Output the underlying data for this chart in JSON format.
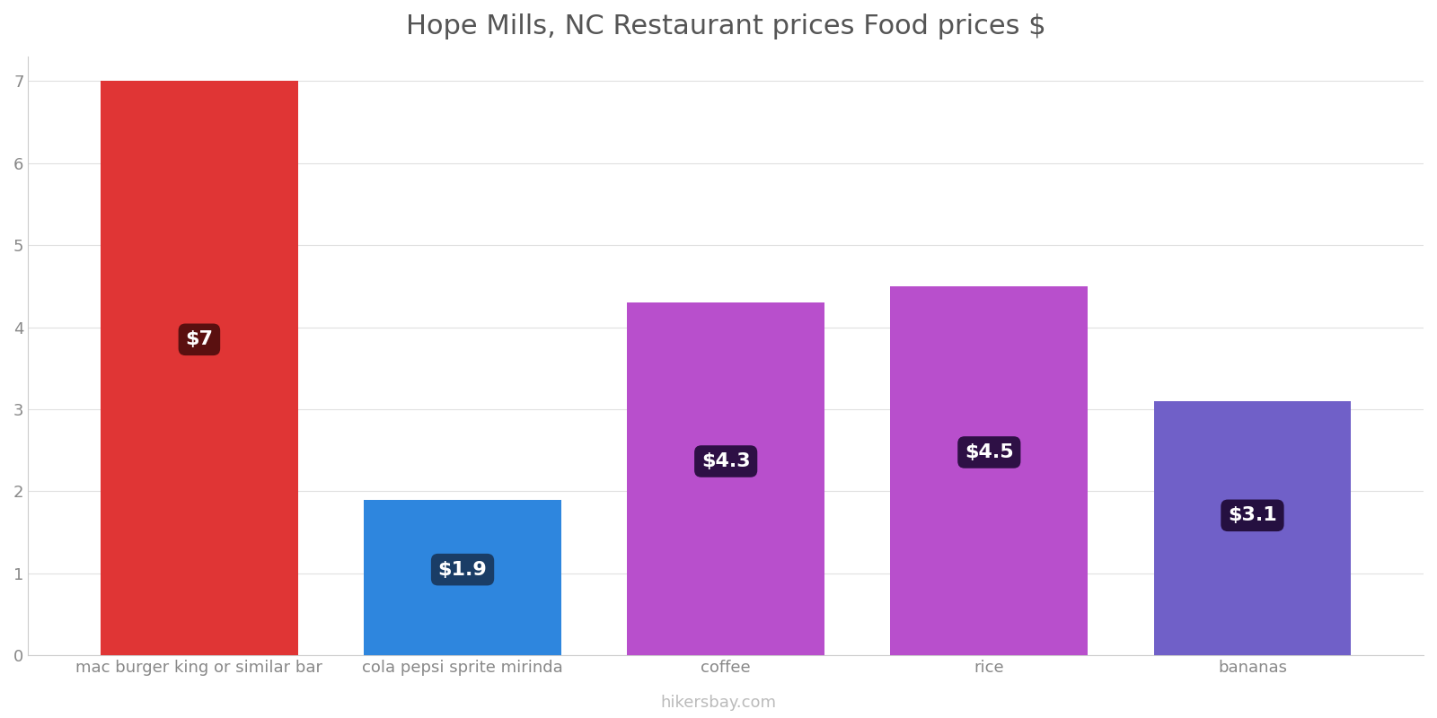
{
  "title": "Hope Mills, NC Restaurant prices Food prices $",
  "categories": [
    "mac burger king or similar bar",
    "cola pepsi sprite mirinda",
    "coffee",
    "rice",
    "bananas"
  ],
  "values": [
    7.0,
    1.9,
    4.3,
    4.5,
    3.1
  ],
  "labels": [
    "$7",
    "$1.9",
    "$4.3",
    "$4.5",
    "$3.1"
  ],
  "bar_colors": [
    "#e03535",
    "#2e86de",
    "#b84fcc",
    "#b84fcc",
    "#7060c8"
  ],
  "label_box_colors": [
    "#5a1010",
    "#1a3d66",
    "#2e1045",
    "#2e1045",
    "#251040"
  ],
  "ylim": [
    0,
    7.3
  ],
  "yticks": [
    0,
    1,
    2,
    3,
    4,
    5,
    6,
    7
  ],
  "background_color": "#ffffff",
  "title_fontsize": 22,
  "tick_fontsize": 13,
  "label_fontsize": 16,
  "watermark": "hikersbay.com",
  "grid_color": "#e0e0e0",
  "bar_width": 0.75
}
